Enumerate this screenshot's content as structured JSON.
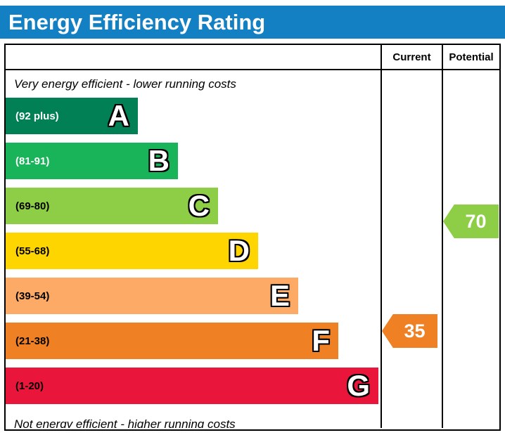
{
  "title": "Energy Efficiency Rating",
  "columns": {
    "current": "Current",
    "potential": "Potential"
  },
  "notes": {
    "top": "Very energy efficient - lower running costs",
    "bottom": "Not energy efficient - higher running costs"
  },
  "bands": [
    {
      "letter": "A",
      "range_label": "(92 plus)",
      "min": 92,
      "max": 100,
      "color": "#008054",
      "label_color": "#ffffff"
    },
    {
      "letter": "B",
      "range_label": "(81-91)",
      "min": 81,
      "max": 91,
      "color": "#19b459",
      "label_color": "#ffffff"
    },
    {
      "letter": "C",
      "range_label": "(69-80)",
      "min": 69,
      "max": 80,
      "color": "#8dce46",
      "label_color": "#000000"
    },
    {
      "letter": "D",
      "range_label": "(55-68)",
      "min": 55,
      "max": 68,
      "color": "#ffd500",
      "label_color": "#000000"
    },
    {
      "letter": "E",
      "range_label": "(39-54)",
      "min": 39,
      "max": 54,
      "color": "#fcaa65",
      "label_color": "#000000"
    },
    {
      "letter": "F",
      "range_label": "(21-38)",
      "min": 21,
      "max": 38,
      "color": "#ef8023",
      "label_color": "#000000"
    },
    {
      "letter": "G",
      "range_label": "(1-20)",
      "min": 1,
      "max": 20,
      "color": "#e9153b",
      "label_color": "#000000"
    }
  ],
  "ratings": {
    "current": {
      "value": 35,
      "color": "#ef8023"
    },
    "potential": {
      "value": 70,
      "color": "#8dce46"
    }
  },
  "theme": {
    "header_blue": "#1380c4"
  },
  "chart_data": {
    "type": "bar",
    "title": "Energy Efficiency Rating",
    "categories": [
      "A",
      "B",
      "C",
      "D",
      "E",
      "F",
      "G"
    ],
    "band_ranges": [
      "92 plus",
      "81-91",
      "69-80",
      "55-68",
      "39-54",
      "21-38",
      "1-20"
    ],
    "band_colors": [
      "#008054",
      "#19b459",
      "#8dce46",
      "#ffd500",
      "#fcaa65",
      "#ef8023",
      "#e9153b"
    ],
    "current_rating": 35,
    "current_band": "F",
    "potential_rating": 70,
    "potential_band": "C",
    "columns": [
      "Current",
      "Potential"
    ],
    "top_annotation": "Very energy efficient - lower running costs",
    "bottom_annotation": "Not energy efficient - higher running costs"
  }
}
